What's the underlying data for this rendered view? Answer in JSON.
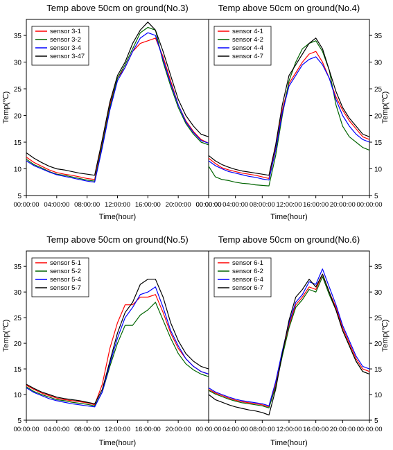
{
  "chart_data": [
    {
      "type": "line",
      "title": "Temp above 50cm on ground(No.3)",
      "xlabel": "Time(hour)",
      "ylabel": "Temp(℃)",
      "xlim": [
        0,
        24
      ],
      "ylim": [
        5,
        38
      ],
      "x_ticks": [
        "00:00:00",
        "04:00:00",
        "08:00:00",
        "12:00:00",
        "16:00:00",
        "20:00:00",
        "00:00:00"
      ],
      "y_ticks": [
        5,
        10,
        15,
        20,
        25,
        30,
        35
      ],
      "y_axis_side": "left",
      "legend": "top-left",
      "grid": false,
      "x": [
        0,
        1,
        2,
        3,
        4,
        5,
        6,
        7,
        8,
        9,
        10,
        11,
        12,
        13,
        14,
        15,
        16,
        17,
        18,
        19,
        20,
        21,
        22,
        23,
        24
      ],
      "series": [
        {
          "name": "sensor 3-1",
          "color": "#ff0000",
          "values": [
            12.2,
            11.2,
            10.5,
            9.8,
            9.3,
            9.0,
            8.8,
            8.5,
            8.2,
            8.0,
            15.0,
            22.0,
            27.0,
            29.0,
            32.0,
            33.5,
            34.0,
            34.5,
            31.0,
            26.5,
            22.0,
            19.0,
            17.0,
            15.5,
            14.8
          ]
        },
        {
          "name": "sensor 3-2",
          "color": "#006400",
          "values": [
            11.8,
            10.8,
            10.2,
            9.5,
            9.0,
            8.8,
            8.5,
            8.2,
            7.9,
            7.7,
            14.5,
            21.5,
            27.0,
            29.5,
            32.5,
            35.5,
            36.5,
            36.0,
            30.0,
            25.5,
            21.5,
            18.5,
            16.5,
            15.0,
            14.5
          ]
        },
        {
          "name": "sensor 3-4",
          "color": "#0000ff",
          "values": [
            11.5,
            10.6,
            10.0,
            9.4,
            8.9,
            8.6,
            8.3,
            8.0,
            7.7,
            7.5,
            14.0,
            21.0,
            26.5,
            29.0,
            32.0,
            34.5,
            35.5,
            35.0,
            30.5,
            26.0,
            22.0,
            18.8,
            16.8,
            15.3,
            14.8
          ]
        },
        {
          "name": "sensor 3-47",
          "color": "#000000",
          "values": [
            13.0,
            12.0,
            11.2,
            10.5,
            10.0,
            9.8,
            9.5,
            9.2,
            9.0,
            8.8,
            15.5,
            22.5,
            27.5,
            30.0,
            33.5,
            36.0,
            37.5,
            36.0,
            32.0,
            27.5,
            23.0,
            20.0,
            18.0,
            16.5,
            16.0
          ]
        }
      ]
    },
    {
      "type": "line",
      "title": "Temp above 50cm on ground(No.4)",
      "xlabel": "Time(hour)",
      "ylabel": "Temp(℃)",
      "xlim": [
        0,
        24
      ],
      "ylim": [
        5,
        38
      ],
      "x_ticks": [
        "00:00:00",
        "04:00:00",
        "08:00:00",
        "12:00:00",
        "16:00:00",
        "20:00:00",
        "00:00:00"
      ],
      "y_ticks": [
        5,
        10,
        15,
        20,
        25,
        30,
        35
      ],
      "y_axis_side": "right",
      "legend": "top-left",
      "grid": false,
      "x": [
        0,
        1,
        2,
        3,
        4,
        5,
        6,
        7,
        8,
        9,
        10,
        11,
        12,
        13,
        14,
        15,
        16,
        17,
        18,
        19,
        20,
        21,
        22,
        23,
        24
      ],
      "series": [
        {
          "name": "sensor 4-1",
          "color": "#ff0000",
          "values": [
            12.0,
            11.0,
            10.2,
            9.8,
            9.5,
            9.2,
            9.0,
            8.8,
            8.5,
            8.2,
            14.0,
            21.0,
            26.0,
            28.0,
            30.0,
            31.5,
            32.0,
            30.0,
            27.0,
            23.5,
            21.0,
            19.0,
            17.5,
            16.0,
            15.5
          ]
        },
        {
          "name": "sensor 4-2",
          "color": "#006400",
          "values": [
            10.5,
            8.5,
            8.0,
            7.8,
            7.5,
            7.3,
            7.2,
            7.0,
            6.9,
            6.8,
            12.5,
            20.0,
            26.5,
            30.0,
            32.5,
            33.5,
            34.0,
            32.0,
            28.5,
            22.0,
            18.0,
            16.0,
            15.0,
            14.0,
            13.5
          ]
        },
        {
          "name": "sensor 4-4",
          "color": "#0000ff",
          "values": [
            11.5,
            10.6,
            10.0,
            9.5,
            9.2,
            8.9,
            8.6,
            8.4,
            8.1,
            7.9,
            13.5,
            20.5,
            25.5,
            27.5,
            29.5,
            30.5,
            31.0,
            29.5,
            27.0,
            23.0,
            20.0,
            18.0,
            16.5,
            15.5,
            15.0
          ]
        },
        {
          "name": "sensor 4-7",
          "color": "#000000",
          "values": [
            12.5,
            11.5,
            10.8,
            10.3,
            9.9,
            9.6,
            9.4,
            9.2,
            9.0,
            8.8,
            14.5,
            22.0,
            27.5,
            29.5,
            31.5,
            33.5,
            34.5,
            32.5,
            28.5,
            24.5,
            21.5,
            19.5,
            18.0,
            16.5,
            16.0
          ]
        }
      ]
    },
    {
      "type": "line",
      "title": "Temp above 50cm on ground(No.5)",
      "xlabel": "Time(hour)",
      "ylabel": "Temp(℃)",
      "xlim": [
        0,
        24
      ],
      "ylim": [
        5,
        38
      ],
      "x_ticks": [
        "00:00:00",
        "04:00:00",
        "08:00:00",
        "12:00:00",
        "16:00:00",
        "20:00:00"
      ],
      "y_ticks": [
        5,
        10,
        15,
        20,
        25,
        30,
        35
      ],
      "y_axis_side": "left",
      "legend": "top-left",
      "grid": false,
      "x": [
        0,
        1,
        2,
        3,
        4,
        5,
        6,
        7,
        8,
        9,
        10,
        11,
        12,
        13,
        14,
        15,
        16,
        17,
        18,
        19,
        20,
        21,
        22,
        23,
        24
      ],
      "series": [
        {
          "name": "sensor 5-1",
          "color": "#ff0000",
          "values": [
            11.8,
            11.0,
            10.3,
            9.8,
            9.3,
            9.0,
            8.8,
            8.6,
            8.4,
            8.0,
            12.0,
            19.0,
            24.0,
            27.5,
            27.5,
            29.0,
            29.0,
            29.5,
            26.0,
            22.0,
            19.0,
            17.0,
            15.5,
            14.5,
            14.0
          ]
        },
        {
          "name": "sensor 5-2",
          "color": "#006400",
          "values": [
            11.5,
            10.6,
            10.0,
            9.5,
            9.0,
            8.8,
            8.5,
            8.3,
            8.1,
            7.8,
            10.5,
            15.5,
            20.0,
            23.5,
            23.5,
            25.5,
            26.5,
            28.0,
            24.5,
            21.0,
            18.0,
            16.0,
            14.8,
            14.0,
            13.5
          ]
        },
        {
          "name": "sensor 5-4",
          "color": "#0000ff",
          "values": [
            11.3,
            10.4,
            9.8,
            9.2,
            8.8,
            8.5,
            8.2,
            8.0,
            7.8,
            7.6,
            10.5,
            16.0,
            21.0,
            25.0,
            27.0,
            29.5,
            30.0,
            31.0,
            27.0,
            22.5,
            19.5,
            17.0,
            15.5,
            14.5,
            14.0
          ]
        },
        {
          "name": "sensor 5-7",
          "color": "#000000",
          "values": [
            12.0,
            11.2,
            10.5,
            10.0,
            9.5,
            9.2,
            9.0,
            8.8,
            8.5,
            8.2,
            11.0,
            16.5,
            22.0,
            26.0,
            28.0,
            31.5,
            32.5,
            32.5,
            29.0,
            24.0,
            20.5,
            18.0,
            16.5,
            15.5,
            15.0
          ]
        }
      ]
    },
    {
      "type": "line",
      "title": "Temp above 50cm on ground(No.6)",
      "xlabel": "Time(hour)",
      "ylabel": "Temp(℃)",
      "xlim": [
        0,
        24
      ],
      "ylim": [
        5,
        38
      ],
      "x_ticks": [
        "00:00:00",
        "04:00:00",
        "08:00:00",
        "12:00:00",
        "16:00:00",
        "20:00:00",
        "00:00:00"
      ],
      "y_ticks": [
        5,
        10,
        15,
        20,
        25,
        30,
        35
      ],
      "y_axis_side": "right",
      "legend": "top-left",
      "grid": false,
      "x": [
        0,
        1,
        2,
        3,
        4,
        5,
        6,
        7,
        8,
        9,
        10,
        11,
        12,
        13,
        14,
        15,
        16,
        17,
        18,
        19,
        20,
        21,
        22,
        23,
        24
      ],
      "series": [
        {
          "name": "sensor 6-1",
          "color": "#ff0000",
          "values": [
            11.0,
            10.3,
            9.8,
            9.3,
            8.9,
            8.6,
            8.4,
            8.2,
            8.0,
            7.6,
            12.0,
            18.0,
            23.5,
            27.5,
            29.0,
            31.0,
            30.5,
            33.5,
            30.0,
            27.0,
            23.0,
            20.0,
            17.0,
            15.0,
            14.5
          ]
        },
        {
          "name": "sensor 6-2",
          "color": "#006400",
          "values": [
            10.8,
            10.1,
            9.6,
            9.1,
            8.7,
            8.4,
            8.2,
            8.0,
            7.8,
            7.4,
            11.5,
            17.5,
            23.0,
            27.0,
            28.5,
            30.5,
            30.0,
            33.0,
            29.5,
            26.5,
            22.5,
            19.5,
            16.5,
            14.5,
            14.0
          ]
        },
        {
          "name": "sensor 6-4",
          "color": "#0000ff",
          "values": [
            11.3,
            10.5,
            10.0,
            9.5,
            9.1,
            8.8,
            8.6,
            8.4,
            8.2,
            7.8,
            12.5,
            18.5,
            24.0,
            28.0,
            29.5,
            32.0,
            31.5,
            34.5,
            31.0,
            27.5,
            23.5,
            20.5,
            17.5,
            15.5,
            15.0
          ]
        },
        {
          "name": "sensor 6-7",
          "color": "#000000",
          "values": [
            10.0,
            9.0,
            8.5,
            8.0,
            7.6,
            7.3,
            7.0,
            6.8,
            6.5,
            6.0,
            11.0,
            18.0,
            24.5,
            29.0,
            30.5,
            32.5,
            31.0,
            33.5,
            30.0,
            26.5,
            22.5,
            19.5,
            16.5,
            14.5,
            14.0
          ]
        }
      ]
    }
  ]
}
